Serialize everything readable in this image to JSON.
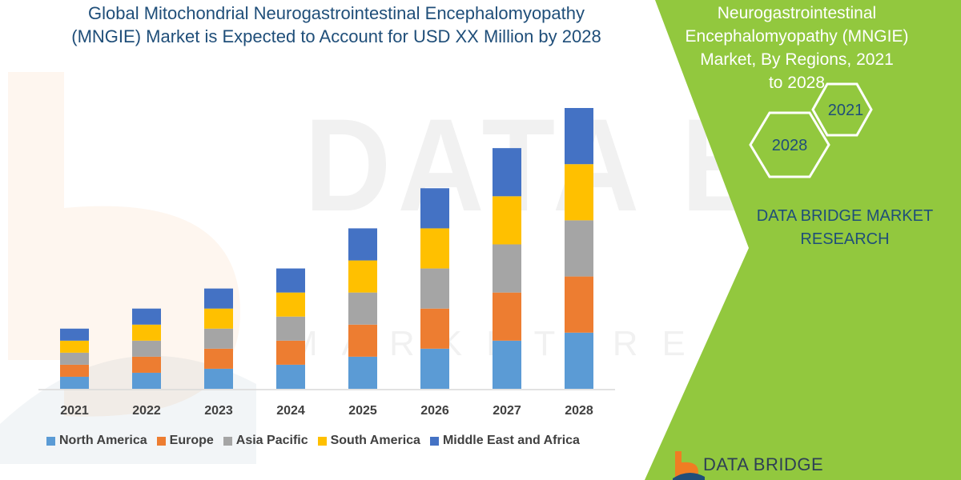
{
  "title_line1": "Global Mitochondrial Neurogastrointestinal Encephalomyopathy",
  "title_line2": "(MNGIE) Market is Expected to Account for USD XX Million by 2028",
  "side_title_line1": "Neurogastrointestinal",
  "side_title_line2": "Encephalomyopathy (MNGIE)",
  "side_title_line3": "Market, By Regions,  2021",
  "side_title_line4": "to 2028",
  "hex_left_label": "2028",
  "hex_right_label": "2021",
  "brand_line1": "DATA BRIDGE MARKET",
  "brand_line2": "RESEARCH",
  "footer_brand": "DATA BRIDGE",
  "watermark_big": "DATA BRIDGE",
  "watermark_small": "MARKET RESEARCH",
  "colors": {
    "green_panel": "#92c83e",
    "navy": "#1f4e79",
    "logo_orange": "#f07d23"
  },
  "chart_data": {
    "type": "bar",
    "stacked": true,
    "categories": [
      "2021",
      "2022",
      "2023",
      "2024",
      "2025",
      "2026",
      "2027",
      "2028"
    ],
    "series": [
      {
        "name": "North America",
        "color": "#5b9bd5",
        "values": [
          3,
          4,
          5,
          6,
          8,
          10,
          12,
          14
        ]
      },
      {
        "name": "Europe",
        "color": "#ed7d31",
        "values": [
          3,
          4,
          5,
          6,
          8,
          10,
          12,
          14
        ]
      },
      {
        "name": "Asia Pacific",
        "color": "#a5a5a5",
        "values": [
          3,
          4,
          5,
          6,
          8,
          10,
          12,
          14
        ]
      },
      {
        "name": "South America",
        "color": "#ffc000",
        "values": [
          3,
          4,
          5,
          6,
          8,
          10,
          12,
          14
        ]
      },
      {
        "name": "Middle East and Africa",
        "color": "#4472c4",
        "values": [
          3,
          4,
          5,
          6,
          8,
          10,
          12,
          14
        ]
      }
    ],
    "ylim": [
      0,
      70
    ],
    "grid": false,
    "legend_position": "bottom"
  }
}
